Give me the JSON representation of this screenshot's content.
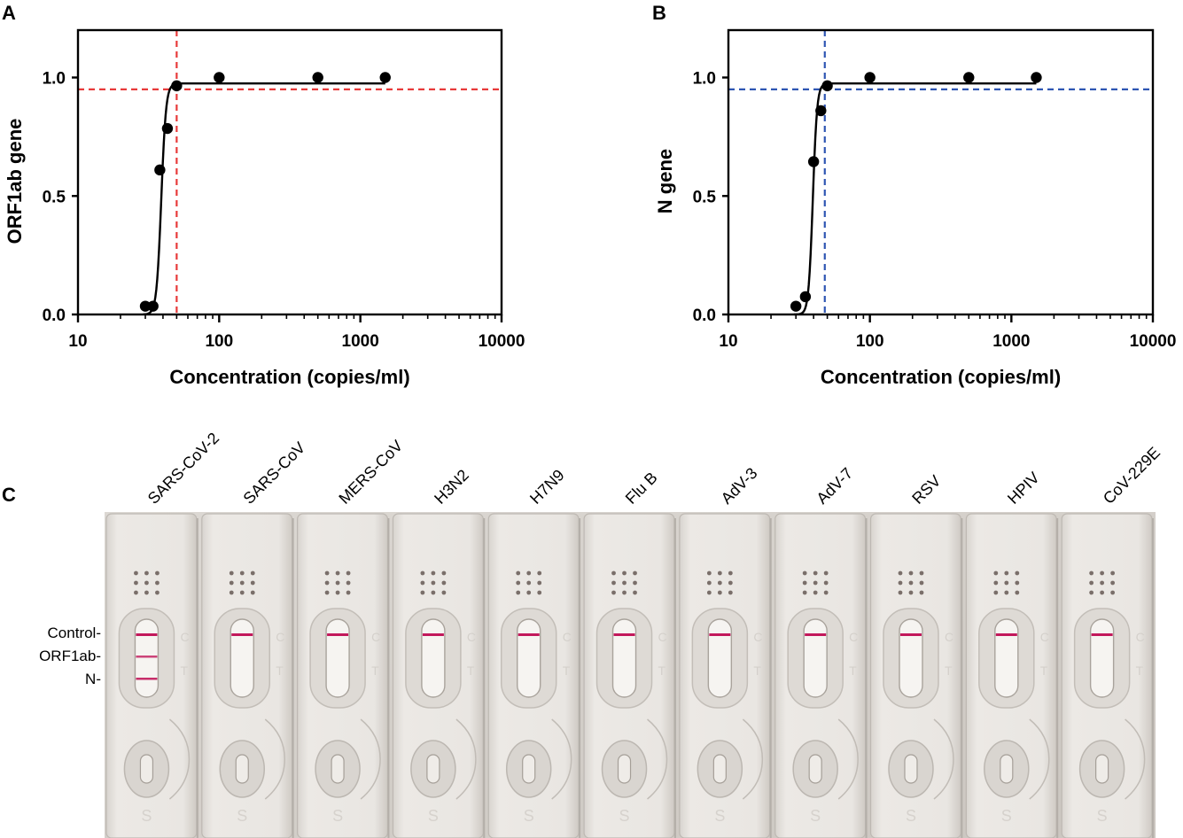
{
  "panels": [
    {
      "label": "A"
    },
    {
      "label": "B"
    },
    {
      "label": "C"
    }
  ],
  "chart_data": [
    {
      "type": "scatter",
      "panel": "A",
      "xscale": "log",
      "xlabel": "Concentration (copies/ml)",
      "ylabel": "ORF1ab gene",
      "xlim": [
        10,
        10000
      ],
      "ylim": [
        0,
        1.2
      ],
      "xticks": [
        10,
        100,
        1000,
        10000
      ],
      "xtick_labels": [
        "10",
        "100",
        "1000",
        "10000"
      ],
      "yticks": [
        0,
        0.5,
        1.0
      ],
      "ytick_labels": [
        "0.0",
        "0.5",
        "1.0"
      ],
      "x": [
        30,
        34,
        38,
        43,
        50,
        100,
        500,
        1500
      ],
      "y": [
        0.035,
        0.035,
        0.61,
        0.785,
        0.965,
        1.0,
        1.0,
        1.0
      ],
      "fit_curve": {
        "bottom": 0.0,
        "top": 0.975,
        "ec50": 38.9,
        "hill": 26
      },
      "reference_lines": {
        "x": 50,
        "y": 0.95,
        "color": "#e83a3a"
      },
      "curve_color": "#000000"
    },
    {
      "type": "scatter",
      "panel": "B",
      "xscale": "log",
      "xlabel": "Concentration (copies/ml)",
      "ylabel": "N gene",
      "xlim": [
        10,
        10000
      ],
      "ylim": [
        0,
        1.2
      ],
      "xticks": [
        10,
        100,
        1000,
        10000
      ],
      "xtick_labels": [
        "10",
        "100",
        "1000",
        "10000"
      ],
      "yticks": [
        0,
        0.5,
        1.0
      ],
      "ytick_labels": [
        "0.0",
        "0.5",
        "1.0"
      ],
      "x": [
        30,
        35,
        40,
        45,
        50,
        100,
        500,
        1500
      ],
      "y": [
        0.035,
        0.075,
        0.645,
        0.86,
        0.965,
        1.0,
        1.0,
        1.0
      ],
      "fit_curve": {
        "bottom": 0.0,
        "top": 0.975,
        "ec50": 39.5,
        "hill": 29
      },
      "reference_lines": {
        "x": 48,
        "y": 0.95,
        "color": "#2f56b3"
      },
      "curve_color": "#000000"
    }
  ],
  "photo": {
    "samples": [
      "SARS-CoV-2",
      "SARS-CoV",
      "MERS-CoV",
      "H3N2",
      "H7N9",
      "Flu B",
      "AdV-3",
      "AdV-7",
      "RSV",
      "HPIV",
      "CoV-229E"
    ],
    "row_labels": [
      "Control-",
      "ORF1ab-",
      "N-"
    ],
    "band_color": "#c2185b",
    "control_band": [
      true,
      true,
      true,
      true,
      true,
      true,
      true,
      true,
      true,
      true,
      true
    ],
    "orf1ab_band": [
      true,
      false,
      false,
      false,
      false,
      false,
      false,
      false,
      false,
      false,
      false
    ],
    "n_band": [
      true,
      false,
      false,
      false,
      false,
      false,
      false,
      false,
      false,
      false,
      false
    ],
    "cassette_marks": {
      "control": "C",
      "test": "T",
      "sample_well": "S"
    }
  }
}
